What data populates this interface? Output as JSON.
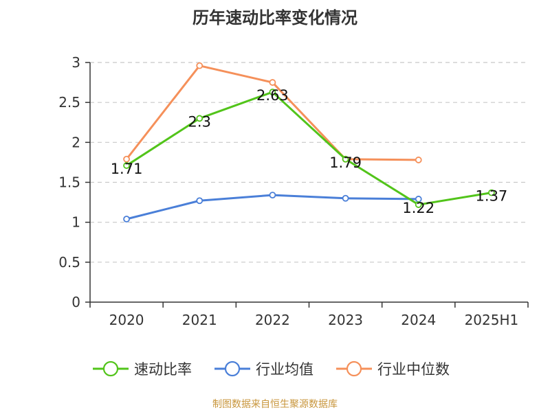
{
  "chart_data": {
    "type": "line",
    "title": "历年速动比率变化情况",
    "xlabel": "",
    "ylabel": "",
    "categories": [
      "2020",
      "2021",
      "2022",
      "2023",
      "2024",
      "2025H1"
    ],
    "ylim": [
      0,
      3
    ],
    "yticks": [
      0,
      0.5,
      1,
      1.5,
      2,
      2.5,
      3
    ],
    "ytick_labels": [
      "0",
      "0.5",
      "1",
      "1.5",
      "2",
      "2.5",
      "3"
    ],
    "grid": true,
    "legend_position": "bottom",
    "series": [
      {
        "name": "速动比率",
        "color": "#52c41a",
        "values": [
          1.71,
          2.3,
          2.63,
          1.79,
          1.22,
          1.37
        ],
        "data_labels": [
          "1.71",
          "2.3",
          "2.63",
          "1.79",
          "1.22",
          "1.37"
        ]
      },
      {
        "name": "行业均值",
        "color": "#4a7fd8",
        "values": [
          1.04,
          1.27,
          1.34,
          1.3,
          1.29,
          null
        ]
      },
      {
        "name": "行业中位数",
        "color": "#f5905a",
        "values": [
          1.79,
          2.96,
          2.75,
          1.79,
          1.78,
          null
        ]
      }
    ]
  },
  "source": "制图数据来自恒生聚源数据库"
}
